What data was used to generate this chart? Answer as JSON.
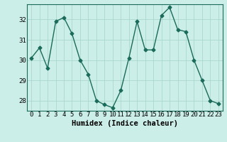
{
  "x": [
    0,
    1,
    2,
    3,
    4,
    5,
    6,
    7,
    8,
    9,
    10,
    11,
    12,
    13,
    14,
    15,
    16,
    17,
    18,
    19,
    20,
    21,
    22,
    23
  ],
  "y": [
    30.1,
    30.6,
    29.6,
    31.9,
    32.1,
    31.3,
    30.0,
    29.3,
    28.0,
    27.8,
    27.65,
    28.5,
    30.1,
    31.9,
    30.5,
    30.5,
    32.2,
    32.6,
    31.5,
    31.4,
    30.0,
    29.0,
    28.0,
    27.85
  ],
  "line_color": "#1a6b5a",
  "marker": "D",
  "marker_size": 2.5,
  "bg_color": "#cceee8",
  "grid_color": "#aad8d0",
  "xlabel": "Humidex (Indice chaleur)",
  "ylim": [
    27.5,
    32.75
  ],
  "yticks": [
    28,
    29,
    30,
    31,
    32
  ],
  "xticks": [
    0,
    1,
    2,
    3,
    4,
    5,
    6,
    7,
    8,
    9,
    10,
    11,
    12,
    13,
    14,
    15,
    16,
    17,
    18,
    19,
    20,
    21,
    22,
    23
  ],
  "xlabel_fontsize": 7.5,
  "tick_fontsize": 6.5
}
